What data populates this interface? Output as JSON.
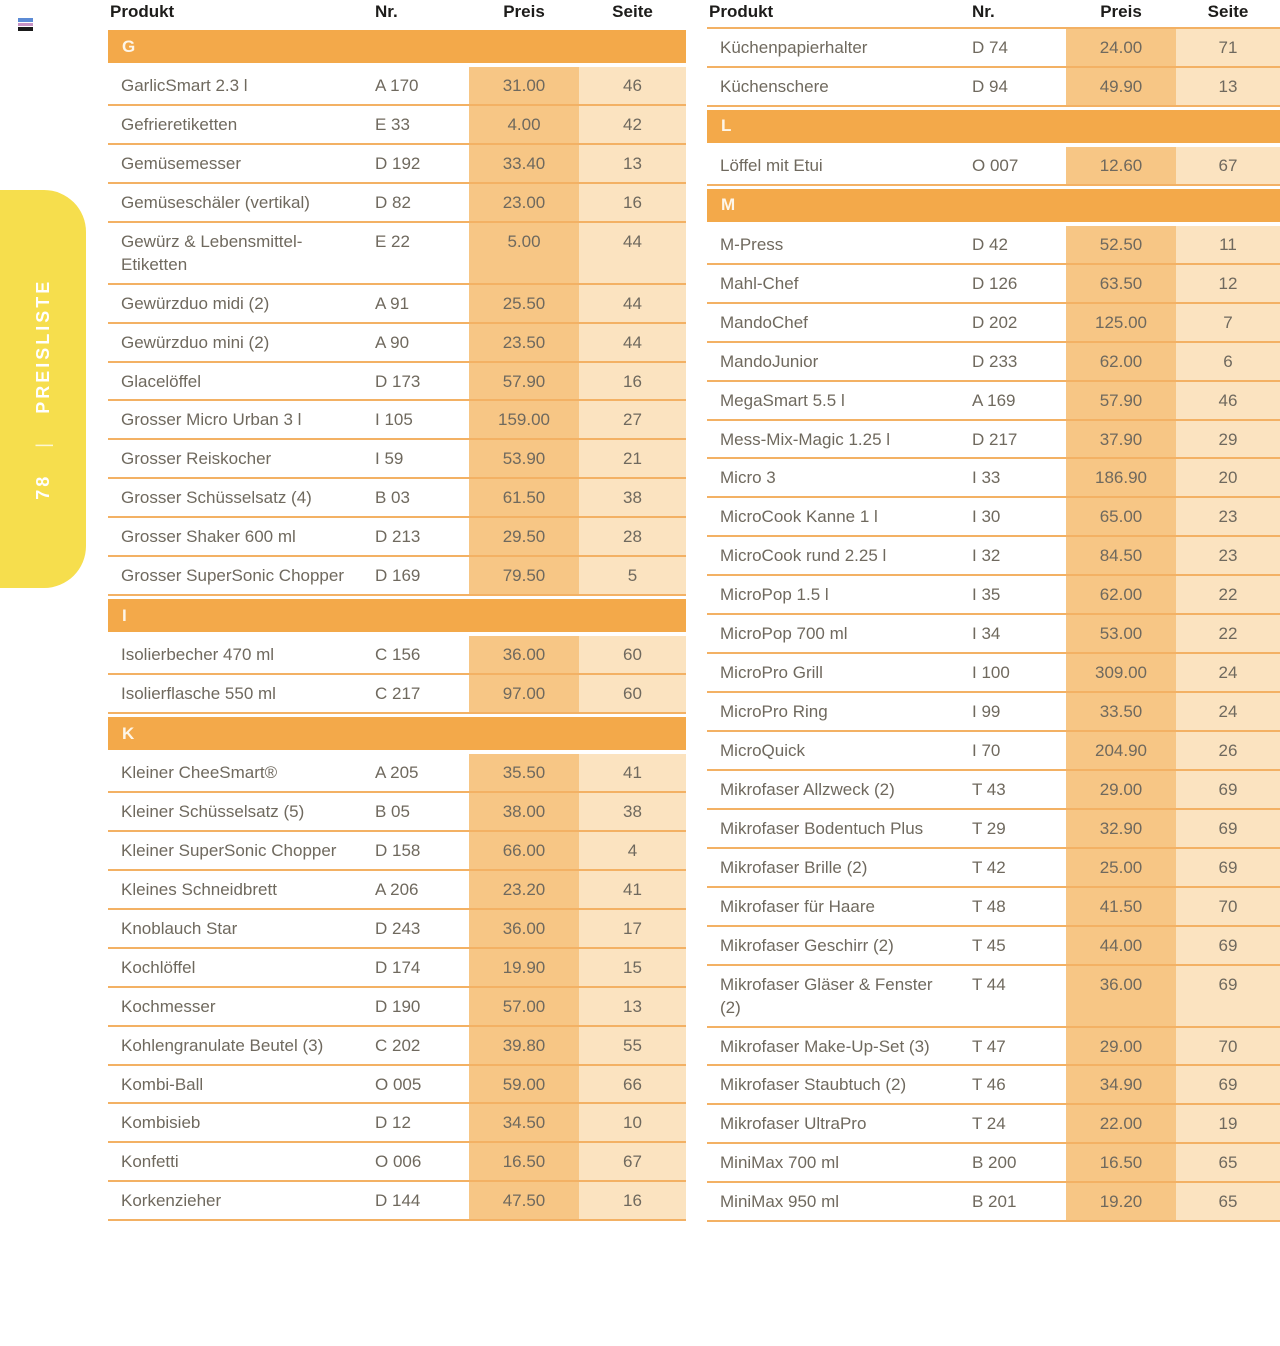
{
  "page": {
    "background": "#ffffff"
  },
  "corner_icon": {
    "name": "stripe-glyph",
    "colors": [
      "#5c8bd5",
      "#c792c4",
      "#1a1a1a"
    ]
  },
  "sidebar_tab": {
    "label": "PREISLISTE",
    "separator": "|",
    "page_number": "78",
    "color": "#f6de4d",
    "text_color": "#ffffff"
  },
  "colors": {
    "section_bar": "#f3a94a",
    "preis_col": "#f7c685",
    "seite_col": "#fbe3c0",
    "row_divider": "#f3b164",
    "header_text": "#1d1c1a",
    "row_text": "#6f695e",
    "section_letter": "#fdf6e9"
  },
  "tables": {
    "left": {
      "headers": {
        "produkt": "Produkt",
        "nr": "Nr.",
        "preis": "Preis",
        "seite": "Seite"
      },
      "rows": [
        {
          "section": "G"
        },
        {
          "produkt": "GarlicSmart 2.3 l",
          "nr": "A 170",
          "preis": "31.00",
          "seite": "46"
        },
        {
          "produkt": "Gefrieretiketten",
          "nr": "E 33",
          "preis": "4.00",
          "seite": "42"
        },
        {
          "produkt": "Gemüsemesser",
          "nr": "D 192",
          "preis": "33.40",
          "seite": "13"
        },
        {
          "produkt": "Gemüseschäler (vertikal)",
          "nr": "D 82",
          "preis": "23.00",
          "seite": "16"
        },
        {
          "produkt": "Gewürz & Lebensmittel-Etiketten",
          "nr": "E 22",
          "preis": "5.00",
          "seite": "44"
        },
        {
          "produkt": "Gewürzduo midi (2)",
          "nr": "A 91",
          "preis": "25.50",
          "seite": "44"
        },
        {
          "produkt": "Gewürzduo mini (2)",
          "nr": "A 90",
          "preis": "23.50",
          "seite": "44"
        },
        {
          "produkt": "Glacelöffel",
          "nr": "D 173",
          "preis": "57.90",
          "seite": "16"
        },
        {
          "produkt": "Grosser Micro Urban 3 l",
          "nr": "I 105",
          "preis": "159.00",
          "seite": "27"
        },
        {
          "produkt": "Grosser Reiskocher",
          "nr": "I 59",
          "preis": "53.90",
          "seite": "21"
        },
        {
          "produkt": "Grosser Schüsselsatz (4)",
          "nr": "B 03",
          "preis": "61.50",
          "seite": "38"
        },
        {
          "produkt": "Grosser Shaker 600 ml",
          "nr": "D 213",
          "preis": "29.50",
          "seite": "28"
        },
        {
          "produkt": "Grosser SuperSonic Chopper",
          "nr": "D 169",
          "preis": "79.50",
          "seite": "5"
        },
        {
          "section": "I"
        },
        {
          "produkt": "Isolierbecher 470 ml",
          "nr": "C 156",
          "preis": "36.00",
          "seite": "60"
        },
        {
          "produkt": "Isolierflasche 550 ml",
          "nr": "C 217",
          "preis": "97.00",
          "seite": "60"
        },
        {
          "section": "K"
        },
        {
          "produkt": "Kleiner CheeSmart®",
          "nr": "A 205",
          "preis": "35.50",
          "seite": "41"
        },
        {
          "produkt": "Kleiner Schüsselsatz (5)",
          "nr": "B 05",
          "preis": "38.00",
          "seite": "38"
        },
        {
          "produkt": "Kleiner SuperSonic Chopper",
          "nr": "D 158",
          "preis": "66.00",
          "seite": "4"
        },
        {
          "produkt": "Kleines Schneidbrett",
          "nr": "A 206",
          "preis": "23.20",
          "seite": "41"
        },
        {
          "produkt": "Knoblauch Star",
          "nr": "D 243",
          "preis": "36.00",
          "seite": "17"
        },
        {
          "produkt": "Kochlöffel",
          "nr": "D 174",
          "preis": "19.90",
          "seite": "15"
        },
        {
          "produkt": "Kochmesser",
          "nr": "D 190",
          "preis": "57.00",
          "seite": "13"
        },
        {
          "produkt": "Kohlengranulate Beutel (3)",
          "nr": "C 202",
          "preis": "39.80",
          "seite": "55"
        },
        {
          "produkt": "Kombi-Ball",
          "nr": "O 005",
          "preis": "59.00",
          "seite": "66"
        },
        {
          "produkt": "Kombisieb",
          "nr": "D 12",
          "preis": "34.50",
          "seite": "10"
        },
        {
          "produkt": "Konfetti",
          "nr": "O 006",
          "preis": "16.50",
          "seite": "67"
        },
        {
          "produkt": "Korkenzieher",
          "nr": "D 144",
          "preis": "47.50",
          "seite": "16"
        }
      ]
    },
    "right": {
      "headers": {
        "produkt": "Produkt",
        "nr": "Nr.",
        "preis": "Preis",
        "seite": "Seite"
      },
      "rows": [
        {
          "produkt": "Küchenpapierhalter",
          "nr": "D 74",
          "preis": "24.00",
          "seite": "71"
        },
        {
          "produkt": "Küchenschere",
          "nr": "D 94",
          "preis": "49.90",
          "seite": "13"
        },
        {
          "section": "L"
        },
        {
          "produkt": "Löffel mit Etui",
          "nr": "O 007",
          "preis": "12.60",
          "seite": "67"
        },
        {
          "section": "M"
        },
        {
          "produkt": "M-Press",
          "nr": "D 42",
          "preis": "52.50",
          "seite": "11"
        },
        {
          "produkt": "Mahl-Chef",
          "nr": "D 126",
          "preis": "63.50",
          "seite": "12"
        },
        {
          "produkt": "MandoChef",
          "nr": "D 202",
          "preis": "125.00",
          "seite": "7"
        },
        {
          "produkt": "MandoJunior",
          "nr": "D 233",
          "preis": "62.00",
          "seite": "6"
        },
        {
          "produkt": "MegaSmart 5.5 l",
          "nr": "A 169",
          "preis": "57.90",
          "seite": "46"
        },
        {
          "produkt": "Mess-Mix-Magic 1.25 l",
          "nr": "D 217",
          "preis": "37.90",
          "seite": "29"
        },
        {
          "produkt": "Micro 3",
          "nr": "I 33",
          "preis": "186.90",
          "seite": "20"
        },
        {
          "produkt": "MicroCook Kanne 1 l",
          "nr": "I 30",
          "preis": "65.00",
          "seite": "23"
        },
        {
          "produkt": "MicroCook rund 2.25 l",
          "nr": "I 32",
          "preis": "84.50",
          "seite": "23"
        },
        {
          "produkt": "MicroPop 1.5 l",
          "nr": "I 35",
          "preis": "62.00",
          "seite": "22"
        },
        {
          "produkt": "MicroPop 700 ml",
          "nr": "I 34",
          "preis": "53.00",
          "seite": "22"
        },
        {
          "produkt": "MicroPro Grill",
          "nr": "I 100",
          "preis": "309.00",
          "seite": "24"
        },
        {
          "produkt": "MicroPro Ring",
          "nr": "I 99",
          "preis": "33.50",
          "seite": "24"
        },
        {
          "produkt": "MicroQuick",
          "nr": "I 70",
          "preis": "204.90",
          "seite": "26"
        },
        {
          "produkt": "Mikrofaser Allzweck (2)",
          "nr": "T 43",
          "preis": "29.00",
          "seite": "69"
        },
        {
          "produkt": "Mikrofaser Bodentuch Plus",
          "nr": "T 29",
          "preis": "32.90",
          "seite": "69"
        },
        {
          "produkt": "Mikrofaser Brille (2)",
          "nr": "T 42",
          "preis": "25.00",
          "seite": "69"
        },
        {
          "produkt": "Mikrofaser für Haare",
          "nr": "T 48",
          "preis": "41.50",
          "seite": "70"
        },
        {
          "produkt": "Mikrofaser Geschirr (2)",
          "nr": "T 45",
          "preis": "44.00",
          "seite": "69"
        },
        {
          "produkt": "Mikrofaser Gläser & Fenster (2)",
          "nr": "T 44",
          "preis": "36.00",
          "seite": "69"
        },
        {
          "produkt": "Mikrofaser Make-Up-Set (3)",
          "nr": "T 47",
          "preis": "29.00",
          "seite": "70"
        },
        {
          "produkt": "Mikrofaser Staubtuch (2)",
          "nr": "T 46",
          "preis": "34.90",
          "seite": "69"
        },
        {
          "produkt": "Mikrofaser UltraPro",
          "nr": "T 24",
          "preis": "22.00",
          "seite": "19"
        },
        {
          "produkt": "MiniMax 700 ml",
          "nr": "B 200",
          "preis": "16.50",
          "seite": "65"
        },
        {
          "produkt": "MiniMax 950 ml",
          "nr": "B 201",
          "preis": "19.20",
          "seite": "65"
        }
      ]
    }
  }
}
